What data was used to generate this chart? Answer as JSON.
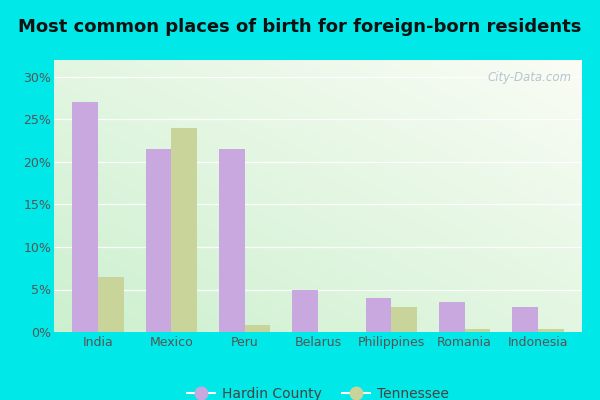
{
  "title": "Most common places of birth for foreign-born residents",
  "categories": [
    "India",
    "Mexico",
    "Peru",
    "Belarus",
    "Philippines",
    "Romania",
    "Indonesia"
  ],
  "hardin_county": [
    27.0,
    21.5,
    21.5,
    5.0,
    4.0,
    3.5,
    3.0
  ],
  "tennessee": [
    6.5,
    24.0,
    0.8,
    0.0,
    3.0,
    0.4,
    0.3
  ],
  "hardin_color": "#c9a8e0",
  "tennessee_color": "#c8d49a",
  "background_outer": "#00e8e8",
  "ylim": [
    0,
    32
  ],
  "yticks": [
    0,
    5,
    10,
    15,
    20,
    25,
    30
  ],
  "ytick_labels": [
    "0%",
    "5%",
    "10%",
    "15%",
    "20%",
    "25%",
    "30%"
  ],
  "bar_width": 0.35,
  "legend_hardin": "Hardin County",
  "legend_tennessee": "Tennessee",
  "watermark": "City-Data.com",
  "title_fontsize": 13,
  "tick_fontsize": 9
}
